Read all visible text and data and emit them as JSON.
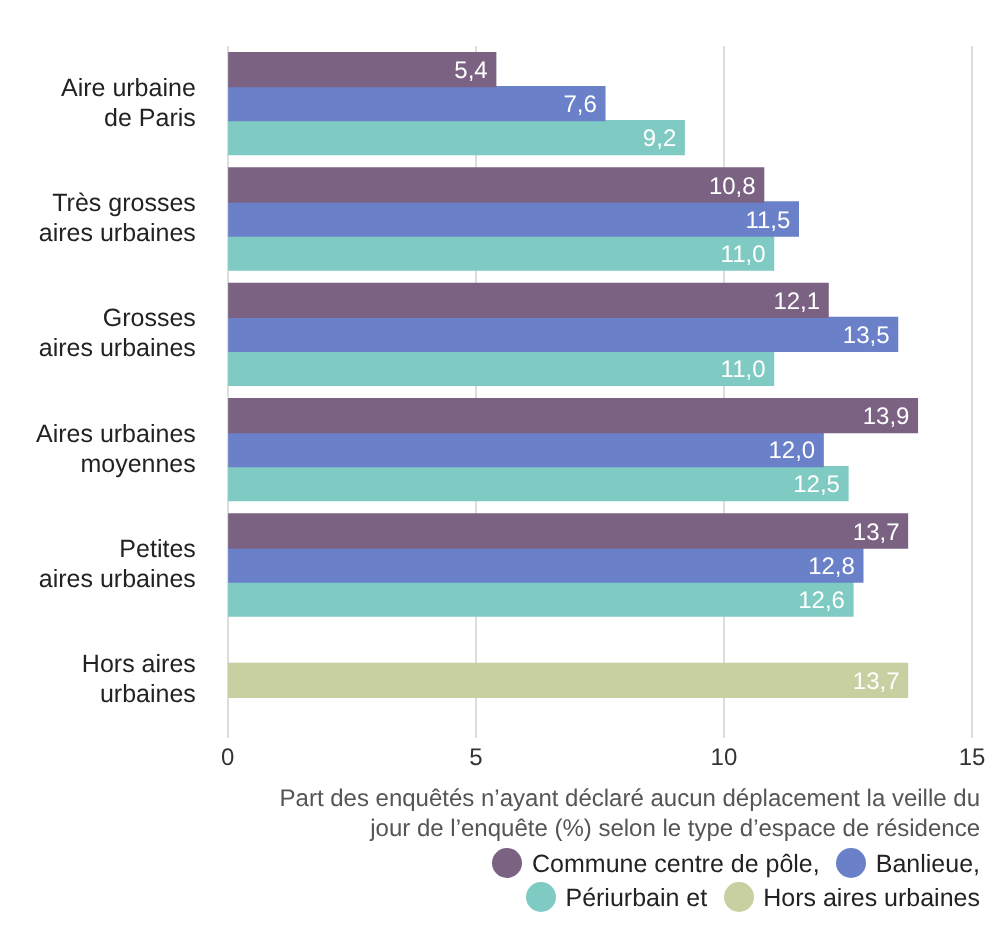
{
  "chart_data": {
    "type": "bar",
    "orientation": "horizontal",
    "categories": [
      "Aire urbaine\nde Paris",
      "Très grosses\naires urbaines",
      "Grosses\naires urbaines",
      "Aires urbaines\nmoyennes",
      "Petites\naires urbaines",
      "Hors aires\nurbaines"
    ],
    "series": [
      {
        "name": "Commune centre de pôle,",
        "color": "#7b6283",
        "values": [
          5.4,
          10.8,
          12.1,
          13.9,
          13.7,
          null
        ],
        "value_labels": [
          "5,4",
          "10,8",
          "12,1",
          "13,9",
          "13,7",
          null
        ]
      },
      {
        "name": "Banlieue,",
        "color": "#6a80c8",
        "values": [
          7.6,
          11.5,
          13.5,
          12.0,
          12.8,
          null
        ],
        "value_labels": [
          "7,6",
          "11,5",
          "13,5",
          "12,0",
          "12,8",
          null
        ]
      },
      {
        "name": "Périurbain et",
        "color": "#7fcbc3",
        "values": [
          9.2,
          11.0,
          11.0,
          12.5,
          12.6,
          null
        ],
        "value_labels": [
          "9,2",
          "11,0",
          "11,0",
          "12,5",
          "12,6",
          null
        ]
      },
      {
        "name": "Hors aires urbaines",
        "color": "#c8cfa0",
        "values": [
          null,
          null,
          null,
          null,
          null,
          13.7
        ],
        "value_labels": [
          null,
          null,
          null,
          null,
          null,
          "13,7"
        ]
      }
    ],
    "xlim": [
      0,
      15
    ],
    "xticks": [
      0,
      5,
      10,
      15
    ],
    "grid": "x",
    "legend": "bottom right",
    "xlabel": "Part des enquêtés n’ayant déclaré aucun déplacement la veille du jour de l’enquête (%) selon le type d’espace de résidence"
  }
}
